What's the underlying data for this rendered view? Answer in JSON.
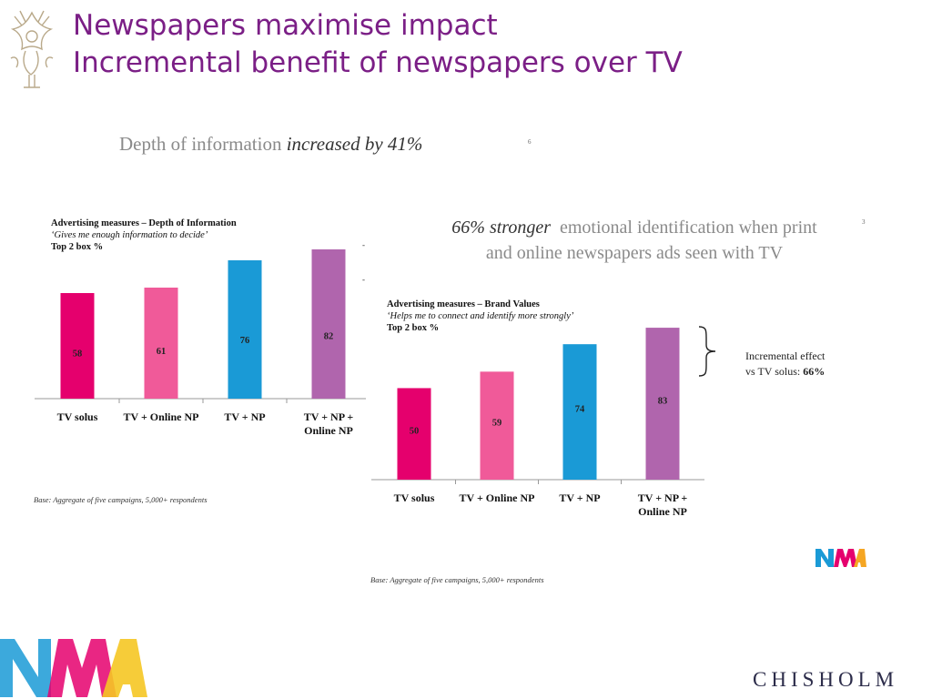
{
  "slide": {
    "title_line1": "Newspapers maximise impact",
    "title_line2": "Incremental benefit of newspapers over TV"
  },
  "panel1": {
    "headline_plain": "Depth of information ",
    "headline_emph": "increased by 41%",
    "footnote_mark": "6",
    "chart_title": "Advertising measures – Depth of Information",
    "chart_quote": "‘Gives me enough information to decide’",
    "chart_base_label": "Top 2 box %",
    "base_note": "Base: Aggregate of five campaigns, 5,000+ respondents"
  },
  "panel2": {
    "headline_emph": "66% stronger",
    "headline_plain_line1": "emotional identification when print",
    "headline_plain_line2": "and online newspapers ads seen with TV",
    "footnote_mark": "3",
    "chart_title": "Advertising measures – Brand Values",
    "chart_quote": "‘Helps me to connect and identify more strongly’",
    "chart_base_label": "Top 2 box %",
    "incremental_line1": "Incremental effect",
    "incremental_line2_plain": "vs TV solus: ",
    "incremental_line2_bold": "66%",
    "base_note": "Base: Aggregate of five campaigns, 5,000+ respondents"
  },
  "brand": {
    "logo_text": "NMA",
    "company": "CHISHOLM"
  },
  "chart_data": [
    {
      "type": "bar",
      "title": "Advertising measures – Depth of Information",
      "subtitle": "‘Gives me enough information to decide’",
      "ylabel": "Top 2 box %",
      "categories": [
        [
          "TV solus"
        ],
        [
          "TV + Online NP"
        ],
        [
          "TV + NP"
        ],
        [
          "TV + NP +",
          "Online NP"
        ]
      ],
      "values": [
        58,
        61,
        76,
        82
      ],
      "colors": [
        "#e5006d",
        "#f05a99",
        "#1a9ad6",
        "#b065ad"
      ],
      "ylim": [
        0,
        90
      ],
      "grid": false
    },
    {
      "type": "bar",
      "title": "Advertising measures – Brand Values",
      "subtitle": "‘Helps me to connect and identify more strongly’",
      "ylabel": "Top 2 box %",
      "categories": [
        [
          "TV solus"
        ],
        [
          "TV + Online NP"
        ],
        [
          "TV + NP"
        ],
        [
          "TV + NP +",
          "Online NP"
        ]
      ],
      "values": [
        50,
        59,
        74,
        83
      ],
      "colors": [
        "#e5006d",
        "#f05a99",
        "#1a9ad6",
        "#b065ad"
      ],
      "ylim": [
        0,
        90
      ],
      "grid": false
    }
  ]
}
